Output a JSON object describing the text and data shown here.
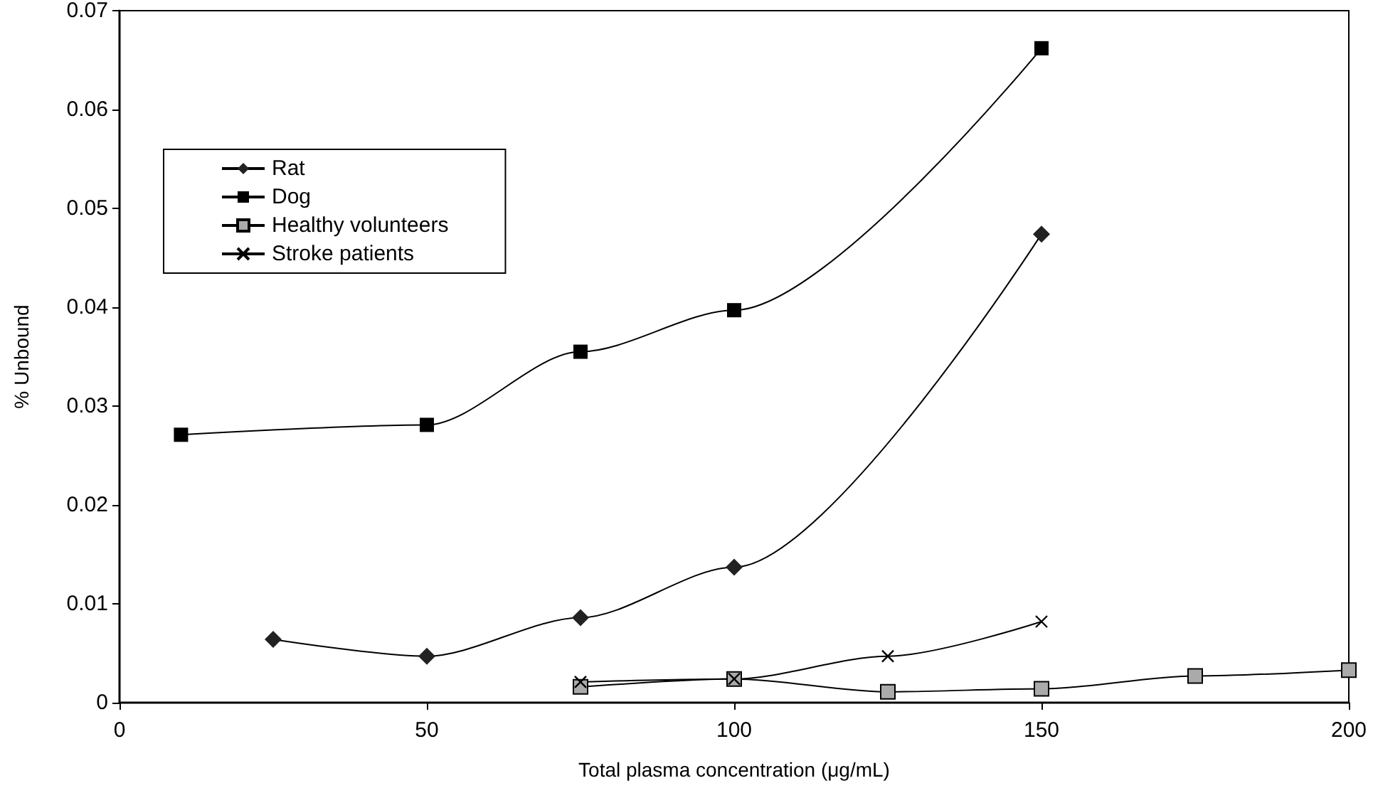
{
  "chart_data": {
    "type": "line",
    "xlabel": "Total plasma concentration (μg/mL)",
    "ylabel": "% Unbound",
    "xlim": [
      0,
      200
    ],
    "xticks": [
      0,
      50,
      100,
      150,
      200
    ],
    "ylim": [
      0,
      0.07
    ],
    "yticks": [
      0,
      0.01,
      0.02,
      0.03,
      0.04,
      0.05,
      0.06,
      0.07
    ],
    "grid": false,
    "legend": "top left",
    "line_style": "solid",
    "series": [
      {
        "name": "Rat",
        "color": "#222222",
        "marker": "diamond",
        "x": [
          25,
          50,
          75,
          100,
          150
        ],
        "values": [
          0.0064,
          0.0047,
          0.0086,
          0.0137,
          0.0474
        ]
      },
      {
        "name": "Dog",
        "color": "#000000",
        "marker": "square",
        "x": [
          10,
          50,
          75,
          100,
          150
        ],
        "values": [
          0.0271,
          0.0281,
          0.0355,
          0.0397,
          0.0662
        ]
      },
      {
        "name": "Healthy volunteers",
        "color": "#aaaaaa",
        "marker": "square",
        "x": [
          75,
          100,
          125,
          150,
          175,
          200
        ],
        "values": [
          0.0016,
          0.0024,
          0.0011,
          0.0014,
          0.0027,
          0.0033
        ]
      },
      {
        "name": "Stroke patients",
        "color": "#000000",
        "marker": "cross",
        "x": [
          75,
          100,
          125,
          150
        ],
        "values": [
          0.0021,
          0.0024,
          0.0047,
          0.0082
        ]
      }
    ]
  }
}
